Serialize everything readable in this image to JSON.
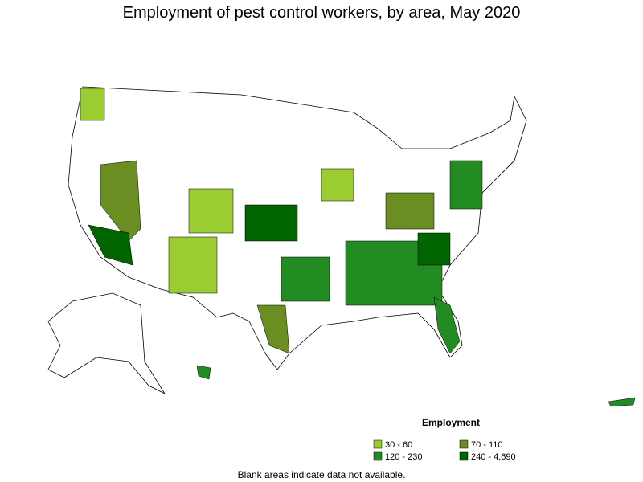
{
  "title": "Employment of pest control workers, by area, May 2020",
  "legend": {
    "title": "Employment",
    "items": [
      {
        "label": "30 - 60",
        "color": "#9acd32"
      },
      {
        "label": "70 - 110",
        "color": "#6b8e23"
      },
      {
        "label": "120 - 230",
        "color": "#228b22"
      },
      {
        "label": "240 - 4,690",
        "color": "#006400"
      }
    ]
  },
  "note": "Blank areas indicate data not available."
}
